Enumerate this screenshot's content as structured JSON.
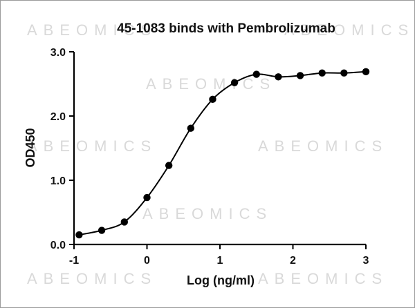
{
  "watermark_text": "ABEOMICS",
  "chart_data": {
    "type": "scatter",
    "title": "45-1083 binds with Pembrolizumab",
    "xlabel": "Log (ng/ml)",
    "ylabel": "OD450",
    "xlim": [
      -1,
      3
    ],
    "ylim": [
      0,
      3
    ],
    "x_ticks": [
      "-1",
      "0",
      "1",
      "2",
      "3"
    ],
    "y_ticks": [
      "0.0",
      "1.0",
      "2.0",
      "3.0"
    ],
    "grid": false,
    "series": [
      {
        "x": [
          -0.93,
          -0.62,
          -0.31,
          0.0,
          0.3,
          0.6,
          0.9,
          1.2,
          1.5,
          1.8,
          2.1,
          2.4,
          2.7,
          3.0
        ],
        "y": [
          0.15,
          0.22,
          0.35,
          0.73,
          1.23,
          1.81,
          2.26,
          2.52,
          2.65,
          2.61,
          2.63,
          2.67,
          2.67,
          2.69
        ],
        "fit": "sigmoidal curve",
        "color": "#000000"
      }
    ]
  }
}
